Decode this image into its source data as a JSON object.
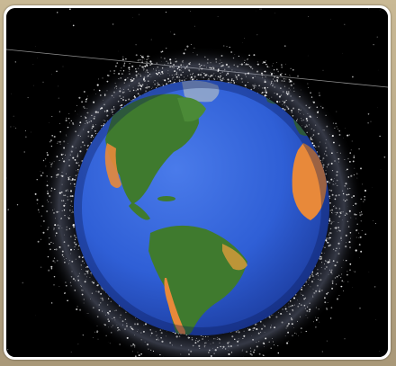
{
  "image": {
    "subject": "earth-with-orbital-debris",
    "colors": {
      "space": "#000000",
      "ocean": "#2f5fd6",
      "land_green": "#3f7a2e",
      "land_orange": "#e8893a",
      "debris": "#ffffff",
      "frame": "#ffffff",
      "background": "#b9a98a"
    }
  }
}
